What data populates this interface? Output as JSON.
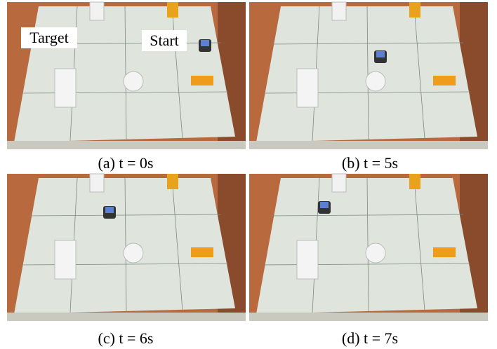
{
  "panels": [
    {
      "caption": "(a) t = 0s",
      "labels": [
        "Target",
        "Start"
      ]
    },
    {
      "caption": "(b) t = 5s"
    },
    {
      "caption": "(c) t = 6s"
    },
    {
      "caption": "(d) t = 7s"
    }
  ]
}
